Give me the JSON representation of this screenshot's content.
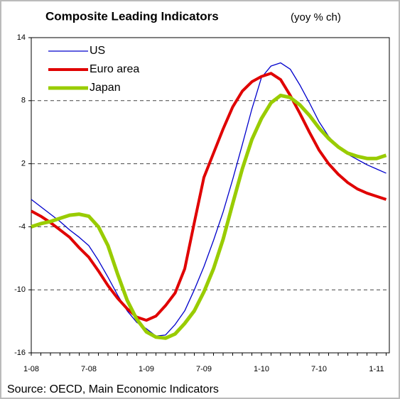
{
  "chart_data": {
    "type": "line",
    "title": "Composite Leading Indicators",
    "title_note": "(yoy % ch)",
    "source": "Source: OECD, Main Economic Indicators",
    "categories": [
      "1-08",
      null,
      null,
      null,
      null,
      null,
      "7-08",
      null,
      null,
      null,
      null,
      null,
      "1-09",
      null,
      null,
      null,
      null,
      null,
      "7-09",
      null,
      null,
      null,
      null,
      null,
      "1-10",
      null,
      null,
      null,
      null,
      null,
      "7-10",
      null,
      null,
      null,
      null,
      null,
      "1-11",
      null
    ],
    "series": [
      {
        "name": "US",
        "color": "#0000cc",
        "values": [
          -1.4,
          -2.1,
          -2.8,
          -3.5,
          -4.3,
          -5.0,
          -5.8,
          -7.2,
          -8.8,
          -10.5,
          -12.0,
          -13.1,
          -13.7,
          -14.4,
          -14.3,
          -13.3,
          -12.0,
          -10.0,
          -7.8,
          -5.3,
          -2.6,
          0.5,
          3.8,
          7.2,
          10.2,
          11.3,
          11.6,
          11.0,
          9.5,
          7.8,
          6.0,
          4.6,
          3.6,
          2.9,
          2.4,
          1.9,
          1.5,
          1.1
        ]
      },
      {
        "name": "Euro area",
        "color": "#e00000",
        "values": [
          -2.5,
          -3.0,
          -3.6,
          -4.3,
          -5.0,
          -6.0,
          -6.9,
          -8.2,
          -9.6,
          -10.8,
          -11.8,
          -12.6,
          -12.9,
          -12.5,
          -11.5,
          -10.3,
          -8.0,
          -3.6,
          0.7,
          3.0,
          5.3,
          7.4,
          8.9,
          9.8,
          10.3,
          10.6,
          10.0,
          8.5,
          6.8,
          5.0,
          3.3,
          2.0,
          1.0,
          0.2,
          -0.4,
          -0.8,
          -1.1,
          -1.4
        ]
      },
      {
        "name": "Japan",
        "color": "#99cc00",
        "values": [
          -4.0,
          -3.7,
          -3.5,
          -3.2,
          -2.9,
          -2.8,
          -3.0,
          -4.0,
          -5.8,
          -8.5,
          -11.0,
          -12.8,
          -14.0,
          -14.5,
          -14.6,
          -14.2,
          -13.2,
          -12.0,
          -10.2,
          -8.0,
          -5.2,
          -1.8,
          1.5,
          4.3,
          6.3,
          7.8,
          8.5,
          8.3,
          7.6,
          6.6,
          5.4,
          4.4,
          3.6,
          3.0,
          2.7,
          2.5,
          2.5,
          2.8
        ]
      }
    ],
    "ylim": [
      -16,
      14
    ],
    "yticks": [
      -16,
      -10,
      -4,
      2,
      8,
      14
    ],
    "grid": true
  }
}
